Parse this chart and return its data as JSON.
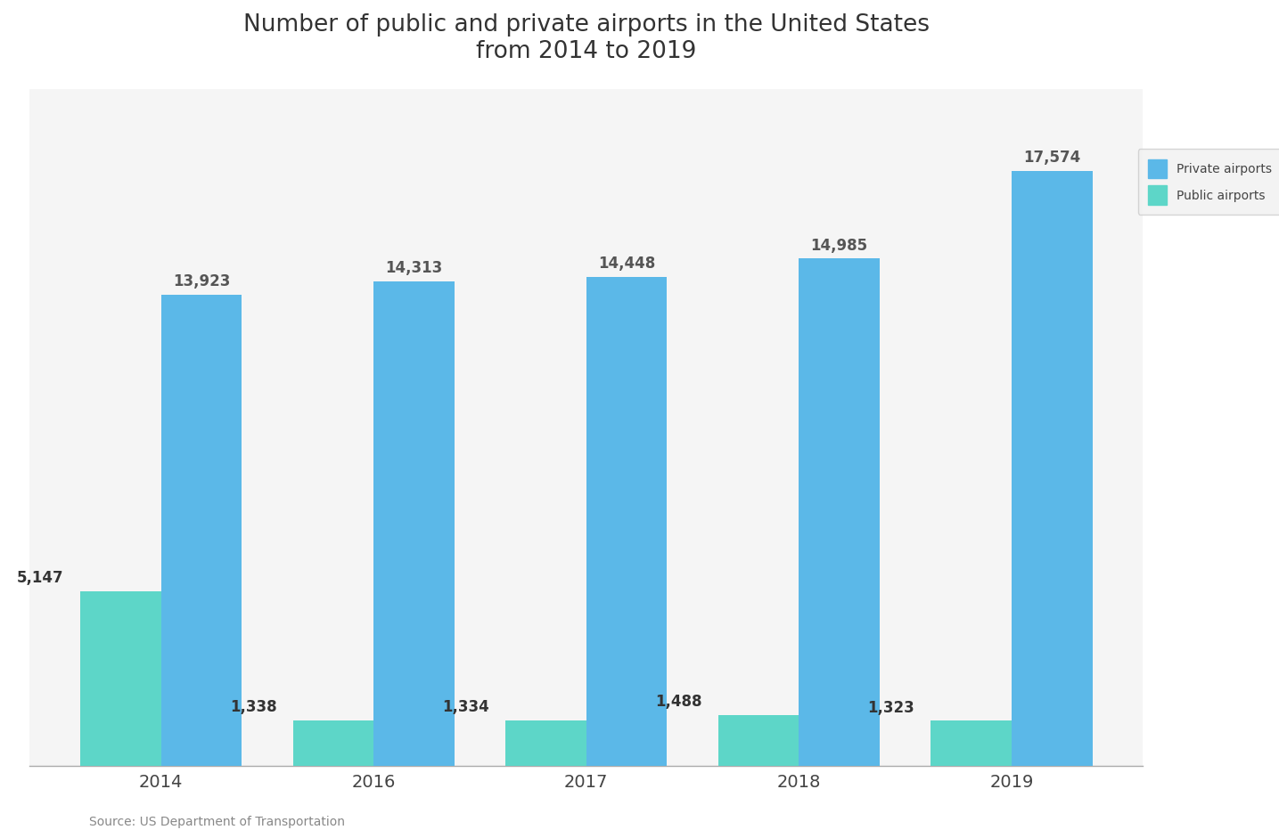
{
  "title": "Number of public and private airports in the United States\nfrom 2014 to 2019",
  "years": [
    "2014",
    "2016",
    "2017",
    "2018",
    "2019"
  ],
  "public_values": [
    5147,
    1338,
    1334,
    1488,
    1323
  ],
  "private_values": [
    13923,
    14313,
    14448,
    14985,
    17574
  ],
  "public_labels": [
    "5,147",
    "1,338",
    "1,334",
    "1,488",
    "1,323"
  ],
  "private_labels": [
    "13,923",
    "14,313",
    "14,448",
    "14,985",
    "17,574"
  ],
  "public_color": "#5DD6C8",
  "private_color": "#5BB8E8",
  "background_color": "#ffffff",
  "plot_bg_color": "#f5f5f5",
  "text_color": "#444444",
  "title_color": "#333333",
  "label_color_private": "#555555",
  "label_color_public": "#333333",
  "bar_width": 0.38,
  "ylim_max": 20000,
  "source_text": "Source: US Department of Transportation",
  "legend_label_private": "Private airports",
  "legend_label_public": "Public airports"
}
